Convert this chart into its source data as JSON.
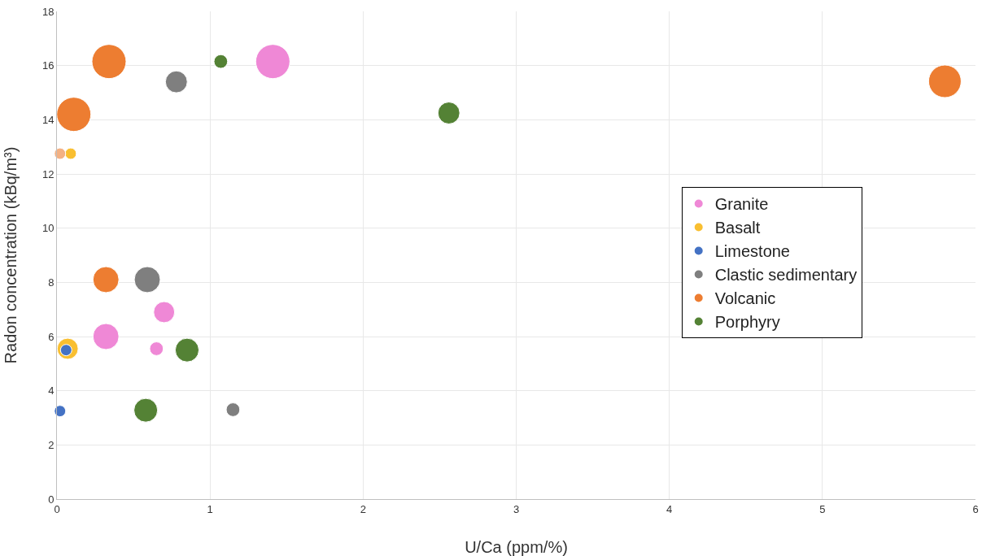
{
  "chart_data": {
    "type": "bubble",
    "xlabel": "U/Ca (ppm/%)",
    "ylabel": "Radon concentration (kBq/m³)",
    "xlim": [
      0,
      6
    ],
    "xticks": [
      0,
      1,
      2,
      3,
      4,
      5,
      6
    ],
    "ylim": [
      0,
      18
    ],
    "yticks": [
      0,
      2,
      4,
      6,
      8,
      10,
      12,
      14,
      16,
      18
    ],
    "grid": true,
    "legend": "right",
    "marker": "circle",
    "series": [
      {
        "name": "Granite",
        "color": "#ef88d6",
        "x": [
          1.41,
          0.32,
          0.7,
          0.65
        ],
        "values": [
          16.15,
          6.0,
          6.9,
          5.55
        ],
        "sizes": [
          1,
          0.58,
          0.38,
          0.16
        ]
      },
      {
        "name": "Basalt",
        "color": "#f9bf31",
        "x": [
          0.07,
          0.09
        ],
        "values": [
          5.55,
          12.75
        ],
        "sizes": [
          0.38,
          0.11
        ]
      },
      {
        "name": "Limestone",
        "color": "#4472c4",
        "x": [
          0.06,
          0.02
        ],
        "values": [
          5.5,
          3.25
        ],
        "sizes": [
          0.11,
          0.11
        ]
      },
      {
        "name": "Clastic sedimentary",
        "color": "#7f7f7f",
        "x": [
          0.78,
          0.59,
          1.15
        ],
        "values": [
          15.4,
          8.1,
          3.3
        ],
        "sizes": [
          0.41,
          0.58,
          0.16
        ]
      },
      {
        "name": "Volcanic",
        "color": "#ed7d31",
        "colors": [
          null,
          null,
          null,
          null,
          "#f4b183"
        ],
        "x": [
          0.34,
          0.11,
          0.32,
          5.8,
          0.02
        ],
        "values": [
          16.15,
          14.2,
          8.1,
          15.42,
          12.75
        ],
        "sizes": [
          1,
          1,
          0.58,
          0.91,
          0.11
        ]
      },
      {
        "name": "Porphyry",
        "color": "#548235",
        "x": [
          1.07,
          2.56,
          0.85,
          0.58
        ],
        "values": [
          16.15,
          14.25,
          5.5,
          3.28
        ],
        "sizes": [
          0.16,
          0.41,
          0.48,
          0.48
        ]
      }
    ]
  }
}
